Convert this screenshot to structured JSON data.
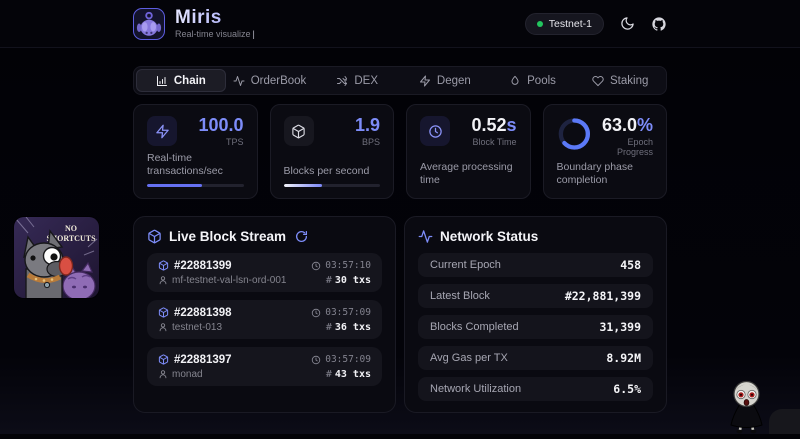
{
  "app": {
    "title": "Miris",
    "subtitle": "Real-time visualize",
    "cursor": "|",
    "network_badge": "Testnet-1"
  },
  "tabs": [
    {
      "label": "Chain",
      "active": true
    },
    {
      "label": "OrderBook",
      "active": false
    },
    {
      "label": "DEX",
      "active": false
    },
    {
      "label": "Degen",
      "active": false
    },
    {
      "label": "Pools",
      "active": false
    },
    {
      "label": "Staking",
      "active": false
    }
  ],
  "stats": [
    {
      "value": "100.0",
      "suffix": "",
      "unit": "TPS",
      "desc": "Real-time transactions/sec",
      "icon": "zap-icon",
      "progress_pct": 57
    },
    {
      "value": "1.9",
      "suffix": "",
      "unit": "BPS",
      "desc": "Blocks per second",
      "icon": "cube-icon",
      "progress_pct": 40
    },
    {
      "value": "0.52",
      "suffix": "s",
      "unit": "Block Time",
      "desc": "Average processing time",
      "icon": "clock-icon"
    },
    {
      "value": "63.0",
      "suffix": "%",
      "unit": "Epoch Progress",
      "desc": "Boundary phase completion",
      "ring_pct": 63
    }
  ],
  "block_stream": {
    "title": "Live Block Stream",
    "hash_symbol": "#",
    "blocks": [
      {
        "id": "#22881399",
        "time": "03:57:10",
        "validator": "mf-testnet-val-lsn-ord-001",
        "txs": "30 txs"
      },
      {
        "id": "#22881398",
        "time": "03:57:09",
        "validator": "testnet-013",
        "txs": "36 txs"
      },
      {
        "id": "#22881397",
        "time": "03:57:09",
        "validator": "monad",
        "txs": "43 txs"
      }
    ]
  },
  "network_status": {
    "title": "Network Status",
    "rows": [
      {
        "label": "Current Epoch",
        "value": "458"
      },
      {
        "label": "Latest Block",
        "value": "#22,881,399"
      },
      {
        "label": "Blocks Completed",
        "value": "31,399"
      },
      {
        "label": "Avg Gas per TX",
        "value": "8.92M"
      },
      {
        "label": "Network Utilization",
        "value": "6.5%"
      }
    ]
  },
  "stickers": {
    "no_shortcuts": {
      "line1": "NO",
      "line2": "SHORTCUTS"
    }
  },
  "colors": {
    "accent": "#7d8cf8",
    "green": "#22c55e"
  }
}
